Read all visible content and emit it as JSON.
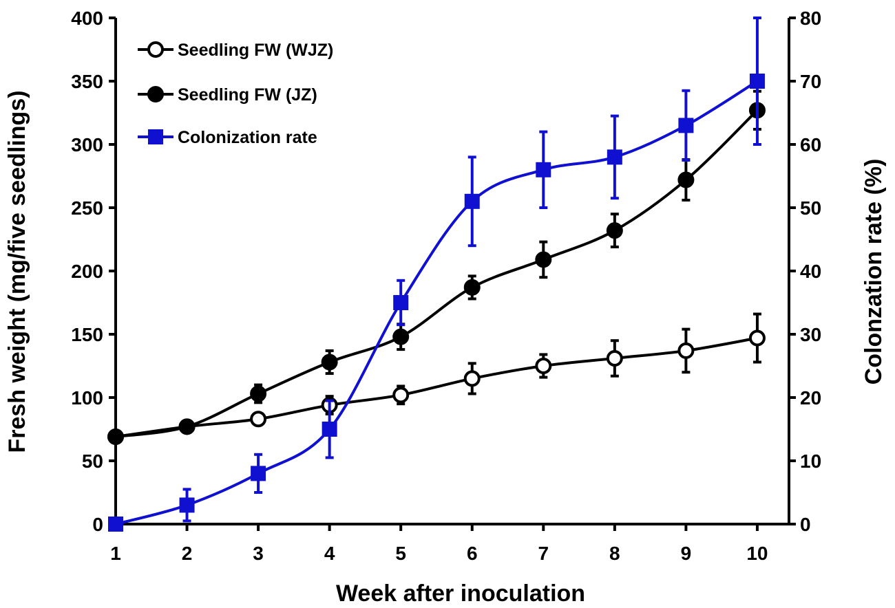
{
  "chart_data": {
    "type": "line",
    "title": "",
    "xlabel": "Week after inoculation",
    "ylabel": "Fresh weight (mg/five seedlings)",
    "y2label": "Colonzation rate (%)",
    "x": [
      1,
      2,
      3,
      4,
      5,
      6,
      7,
      8,
      9,
      10
    ],
    "xlim": [
      1,
      10.7
    ],
    "ylim": [
      0,
      400
    ],
    "y2lim": [
      0,
      80
    ],
    "x_ticks": [
      1,
      2,
      3,
      4,
      5,
      6,
      7,
      8,
      9,
      10
    ],
    "y_ticks": [
      0,
      50,
      100,
      150,
      200,
      250,
      300,
      350,
      400
    ],
    "y2_ticks": [
      0,
      10,
      20,
      30,
      40,
      50,
      60,
      70,
      80
    ],
    "grid": false,
    "legend_position": "top-left",
    "series": [
      {
        "name": "Seedling FW (WJZ)",
        "axis": "left",
        "marker": "circle-open",
        "color": "#000000",
        "values": [
          69,
          77,
          83,
          94,
          102,
          115,
          125,
          131,
          137,
          147
        ],
        "errors": [
          0,
          0,
          3,
          7,
          7,
          12,
          9,
          14,
          17,
          19
        ]
      },
      {
        "name": "Seedling FW (JZ)",
        "axis": "left",
        "marker": "circle-filled",
        "color": "#000000",
        "values": [
          69,
          77,
          103,
          128,
          148,
          187,
          209,
          232,
          272,
          327
        ],
        "errors": [
          0,
          0,
          7,
          9,
          10,
          9,
          14,
          13,
          16,
          15
        ]
      },
      {
        "name": "Colonization rate",
        "axis": "right",
        "marker": "square-filled",
        "color": "#1010d0",
        "values": [
          0,
          3,
          8,
          15,
          35,
          51,
          56,
          58,
          63,
          70
        ],
        "errors": [
          0,
          2.5,
          3,
          4.5,
          3.5,
          7,
          6,
          6.5,
          5.5,
          10
        ]
      }
    ]
  }
}
